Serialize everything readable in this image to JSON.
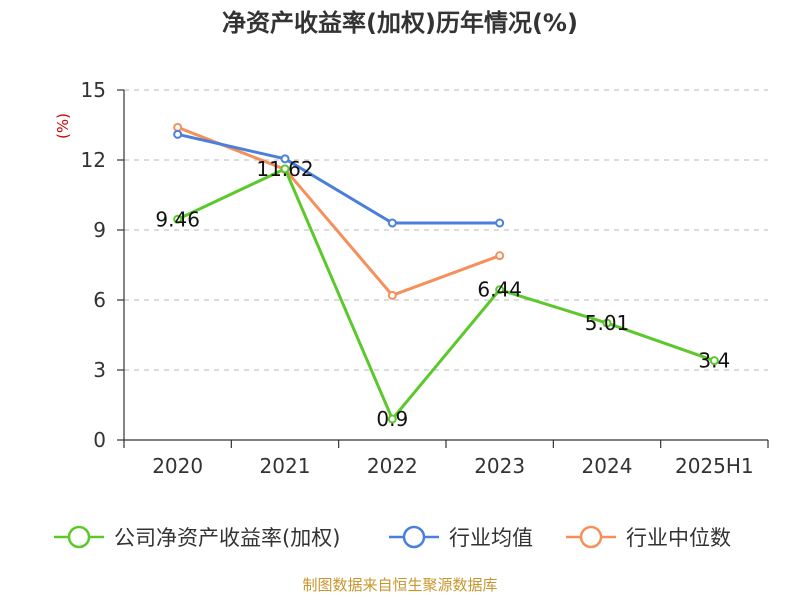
{
  "chart_data": {
    "type": "line",
    "title": "净资产收益率(加权)历年情况(%)",
    "ylabel": "(%)",
    "categories": [
      "2020",
      "2021",
      "2022",
      "2023",
      "2024",
      "2025H1"
    ],
    "ylim": [
      0,
      15
    ],
    "yticks": [
      0,
      3,
      6,
      9,
      12,
      15
    ],
    "grid": true,
    "legend_position": "bottom",
    "series": [
      {
        "name": "公司净资产收益率(加权)",
        "color": "#5cc82c",
        "values": [
          9.46,
          11.62,
          0.9,
          6.44,
          5.01,
          3.4
        ],
        "labels": [
          "9.46",
          "11.62",
          "0.9",
          "6.44",
          "5.01",
          "3.4"
        ]
      },
      {
        "name": "行业均值",
        "color": "#4a7fdc",
        "values": [
          13.1,
          12.05,
          9.3,
          9.3,
          null,
          null
        ]
      },
      {
        "name": "行业中位数",
        "color": "#f5905a",
        "values": [
          13.4,
          11.6,
          6.2,
          7.9,
          null,
          null
        ]
      }
    ]
  },
  "source": "制图数据来自恒生聚源数据库"
}
